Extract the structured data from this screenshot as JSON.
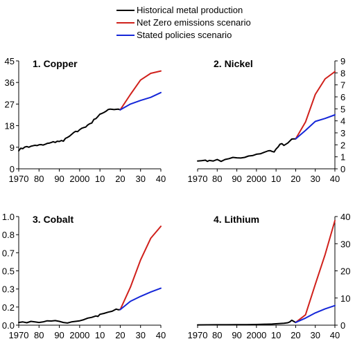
{
  "legend": {
    "items": [
      {
        "label": "Historical metal production",
        "color": "#000000"
      },
      {
        "label": "Net Zero emissions scenario",
        "color": "#d0201b"
      },
      {
        "label": "Stated policies scenario",
        "color": "#1426d8"
      }
    ]
  },
  "chart_data": [
    {
      "type": "line",
      "title": "1. Copper",
      "axis_side": "left",
      "ylim": [
        0,
        45
      ],
      "yticks": [
        "0",
        "9",
        "18",
        "27",
        "36",
        "45"
      ],
      "xlim": [
        1970,
        2040
      ],
      "xticks": [
        "1970",
        "80",
        "90",
        "2000",
        "10",
        "20",
        "30",
        "40"
      ],
      "grid": false,
      "series": [
        {
          "name": "Historical metal production",
          "color": "#000000",
          "x": [
            1970,
            1971,
            1972,
            1973,
            1974,
            1975,
            1976,
            1977,
            1978,
            1979,
            1980,
            1981,
            1982,
            1983,
            1984,
            1985,
            1986,
            1987,
            1988,
            1989,
            1990,
            1991,
            1992,
            1993,
            1994,
            1995,
            1996,
            1997,
            1998,
            1999,
            2000,
            2001,
            2002,
            2003,
            2004,
            2005,
            2006,
            2007,
            2008,
            2009,
            2010,
            2011,
            2012,
            2013,
            2014,
            2015,
            2016,
            2017,
            2018,
            2019,
            2020
          ],
          "values": [
            7.5,
            8.6,
            8.4,
            9.1,
            9.3,
            9.0,
            9.4,
            9.6,
            9.8,
            9.7,
            10.0,
            10.1,
            9.9,
            10.2,
            10.6,
            10.7,
            11.0,
            11.3,
            11.0,
            11.5,
            11.4,
            11.8,
            11.5,
            12.7,
            13.1,
            13.6,
            14.3,
            15.1,
            15.6,
            15.5,
            16.3,
            16.9,
            17.2,
            17.4,
            18.3,
            18.8,
            19.1,
            20.6,
            20.9,
            21.8,
            22.8,
            23.1,
            23.5,
            24.0,
            24.7,
            24.9,
            24.8,
            24.7,
            24.8,
            24.9,
            24.6
          ]
        },
        {
          "name": "Net Zero emissions scenario",
          "color": "#d0201b",
          "x": [
            2020,
            2025,
            2030,
            2035,
            2040
          ],
          "values": [
            24.6,
            31.0,
            37.0,
            39.8,
            40.8
          ]
        },
        {
          "name": "Stated policies scenario",
          "color": "#1426d8",
          "x": [
            2020,
            2025,
            2030,
            2035,
            2040
          ],
          "values": [
            24.6,
            27.0,
            28.5,
            29.8,
            31.8
          ]
        }
      ]
    },
    {
      "type": "line",
      "title": "2. Nickel",
      "axis_side": "right",
      "ylim": [
        0,
        9
      ],
      "yticks": [
        "0",
        "1",
        "2",
        "3",
        "4",
        "5",
        "6",
        "7",
        "8",
        "9"
      ],
      "xlim": [
        1970,
        2040
      ],
      "xticks": [
        "1970",
        "80",
        "90",
        "2000",
        "10",
        "20",
        "30",
        "40"
      ],
      "grid": false,
      "series": [
        {
          "name": "Historical metal production",
          "color": "#000000",
          "x": [
            1970,
            1972,
            1974,
            1975,
            1976,
            1978,
            1980,
            1982,
            1984,
            1986,
            1988,
            1990,
            1992,
            1994,
            1996,
            1998,
            2000,
            2002,
            2004,
            2006,
            2007,
            2008,
            2009,
            2010,
            2011,
            2012,
            2013,
            2014,
            2016,
            2018,
            2019,
            2020
          ],
          "values": [
            0.65,
            0.68,
            0.72,
            0.62,
            0.7,
            0.65,
            0.78,
            0.62,
            0.78,
            0.85,
            0.95,
            0.92,
            0.9,
            0.95,
            1.07,
            1.1,
            1.22,
            1.25,
            1.38,
            1.5,
            1.52,
            1.45,
            1.4,
            1.65,
            1.82,
            2.05,
            2.1,
            1.95,
            2.15,
            2.48,
            2.5,
            2.5
          ]
        },
        {
          "name": "Net Zero emissions scenario",
          "color": "#d0201b",
          "x": [
            2020,
            2025,
            2030,
            2035,
            2040
          ],
          "values": [
            2.5,
            3.9,
            6.2,
            7.5,
            8.1
          ]
        },
        {
          "name": "Stated policies scenario",
          "color": "#1426d8",
          "x": [
            2020,
            2025,
            2030,
            2035,
            2040
          ],
          "values": [
            2.5,
            3.2,
            3.95,
            4.2,
            4.5
          ]
        }
      ]
    },
    {
      "type": "line",
      "title": "3. Cobalt",
      "axis_side": "left",
      "ylim": [
        0,
        1.0
      ],
      "yticks": [
        "0.0",
        "0.2",
        "0.3",
        "0.5",
        "0.7",
        "0.8",
        "1.0"
      ],
      "ytick_values": [
        0.0,
        0.167,
        0.333,
        0.5,
        0.667,
        0.833,
        1.0
      ],
      "xlim": [
        1970,
        2040
      ],
      "xticks": [
        "1970",
        "80",
        "90",
        "2000",
        "10",
        "20",
        "30",
        "40"
      ],
      "grid": false,
      "series": [
        {
          "name": "Historical metal production",
          "color": "#000000",
          "x": [
            1970,
            1972,
            1974,
            1976,
            1978,
            1980,
            1982,
            1984,
            1986,
            1988,
            1990,
            1992,
            1994,
            1996,
            1998,
            2000,
            2002,
            2004,
            2006,
            2008,
            2009,
            2010,
            2012,
            2014,
            2016,
            2018,
            2019,
            2020
          ],
          "values": [
            0.025,
            0.03,
            0.022,
            0.035,
            0.03,
            0.025,
            0.03,
            0.04,
            0.038,
            0.042,
            0.035,
            0.025,
            0.02,
            0.03,
            0.035,
            0.04,
            0.05,
            0.065,
            0.072,
            0.085,
            0.08,
            0.1,
            0.108,
            0.12,
            0.128,
            0.148,
            0.142,
            0.143
          ]
        },
        {
          "name": "Net Zero emissions scenario",
          "color": "#d0201b",
          "x": [
            2020,
            2025,
            2030,
            2035,
            2040
          ],
          "values": [
            0.143,
            0.35,
            0.6,
            0.8,
            0.91
          ]
        },
        {
          "name": "Stated policies scenario",
          "color": "#1426d8",
          "x": [
            2020,
            2025,
            2030,
            2035,
            2040
          ],
          "values": [
            0.143,
            0.22,
            0.265,
            0.305,
            0.34
          ]
        }
      ]
    },
    {
      "type": "line",
      "title": "4. Lithium",
      "axis_side": "right",
      "ylim": [
        0,
        40
      ],
      "yticks": [
        "0",
        "10",
        "20",
        "30",
        "40"
      ],
      "xlim": [
        1970,
        2040
      ],
      "xticks": [
        "1970",
        "80",
        "90",
        "2000",
        "10",
        "20",
        "30",
        "40"
      ],
      "grid": false,
      "series": [
        {
          "name": "Historical metal production",
          "color": "#000000",
          "x": [
            1970,
            1975,
            1980,
            1985,
            1990,
            1995,
            2000,
            2005,
            2008,
            2010,
            2012,
            2014,
            2016,
            2017,
            2018,
            2019,
            2020
          ],
          "values": [
            0.1,
            0.12,
            0.15,
            0.15,
            0.2,
            0.2,
            0.25,
            0.35,
            0.4,
            0.5,
            0.6,
            0.7,
            0.9,
            1.2,
            1.8,
            1.4,
            1.0
          ]
        },
        {
          "name": "Net Zero emissions scenario",
          "color": "#d0201b",
          "x": [
            2020,
            2025,
            2030,
            2035,
            2040
          ],
          "values": [
            1.0,
            3.8,
            15.0,
            26.0,
            38.5
          ]
        },
        {
          "name": "Stated policies scenario",
          "color": "#1426d8",
          "x": [
            2020,
            2025,
            2030,
            2035,
            2040
          ],
          "values": [
            1.0,
            2.6,
            4.5,
            6.0,
            7.2
          ]
        }
      ]
    }
  ]
}
